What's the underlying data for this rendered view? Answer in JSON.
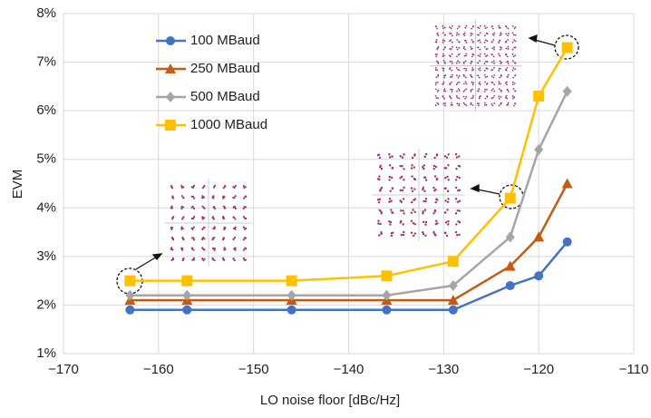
{
  "chart_data": {
    "type": "line",
    "x_label": "LO noise floor [dBc/Hz]",
    "y_label": "EVM",
    "x": [
      -163,
      -157,
      -146,
      -136,
      -129,
      -123,
      -120,
      -117
    ],
    "series": [
      {
        "name": "100 MBaud",
        "color": "#4472c4",
        "marker": "circle",
        "values": [
          1.9,
          1.9,
          1.9,
          1.9,
          1.9,
          2.4,
          2.6,
          3.3
        ]
      },
      {
        "name": "250 MBaud",
        "color": "#c55a11",
        "marker": "triangle",
        "values": [
          2.1,
          2.1,
          2.1,
          2.1,
          2.1,
          2.8,
          3.4,
          4.5
        ]
      },
      {
        "name": "500 MBaud",
        "color": "#a5a5a5",
        "marker": "diamond",
        "values": [
          2.2,
          2.2,
          2.2,
          2.2,
          2.4,
          3.4,
          5.2,
          6.4
        ]
      },
      {
        "name": "1000 MBaud",
        "color": "#ffc000",
        "marker": "square",
        "values": [
          2.5,
          2.5,
          2.5,
          2.6,
          2.9,
          4.2,
          6.3,
          7.3
        ]
      }
    ],
    "xlim": [
      -170,
      -110
    ],
    "xticks": [
      {
        "value": -170,
        "label": "−170"
      },
      {
        "value": -160,
        "label": "−160"
      },
      {
        "value": -150,
        "label": "−150"
      },
      {
        "value": -140,
        "label": "−140"
      },
      {
        "value": -130,
        "label": "−130"
      },
      {
        "value": -120,
        "label": "−120"
      },
      {
        "value": -110,
        "label": "−110"
      }
    ],
    "ylim": [
      1,
      8
    ],
    "yticks": [
      {
        "value": 1,
        "label": "1%"
      },
      {
        "value": 2,
        "label": "2%"
      },
      {
        "value": 3,
        "label": "3%"
      },
      {
        "value": 4,
        "label": "4%"
      },
      {
        "value": 5,
        "label": "5%"
      },
      {
        "value": 6,
        "label": "6%"
      },
      {
        "value": 7,
        "label": "7%"
      },
      {
        "value": 8,
        "label": "8%"
      }
    ],
    "grid": true,
    "legend": "upper-left"
  }
}
